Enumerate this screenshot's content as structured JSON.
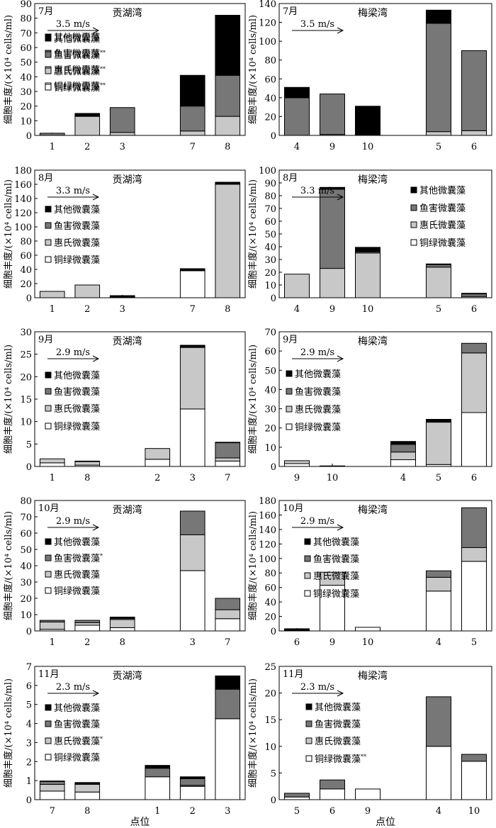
{
  "colors": {
    "其他微囊藻": "#000000",
    "鱼害微囊藻": "#777777",
    "惠氏微囊藻": "#c8c8c8",
    "铜绿微囊藻": "#ffffff"
  },
  "ylabel": "细胞丰度/(×10⁴ cells/ml)",
  "xlabel": "点位",
  "chart_data": [
    {
      "type": "bar",
      "stacked": true,
      "month": "7月",
      "lake": "贡湖湾",
      "wind": "3.5 m/s",
      "ylim": [
        0,
        90
      ],
      "yticks": [
        0,
        10,
        20,
        30,
        40,
        50,
        60,
        70,
        80,
        90
      ],
      "categories": [
        "1",
        "2",
        "3",
        "",
        "7",
        "8"
      ],
      "series": [
        {
          "name": "铜绿微囊藻",
          "values": [
            0,
            0,
            0,
            0,
            0,
            0
          ]
        },
        {
          "name": "惠氏微囊藻",
          "values": [
            0,
            13,
            2,
            0,
            3,
            13
          ]
        },
        {
          "name": "鱼害微囊藻",
          "values": [
            1.5,
            0,
            17,
            0,
            17,
            28
          ]
        },
        {
          "name": "其他微囊藻",
          "values": [
            0,
            2,
            0,
            0,
            21,
            41
          ]
        }
      ],
      "legend": [
        {
          "name": "其他微囊藻",
          "mark": ""
        },
        {
          "name": "鱼害微囊藻",
          "mark": ""
        },
        {
          "name": "惠氏微囊藻",
          "mark": ""
        },
        {
          "name": "铜绿微囊藻",
          "mark": ""
        }
      ]
    },
    {
      "type": "bar",
      "stacked": true,
      "month": "7月",
      "lake": "梅梁湾",
      "wind": "3.5 m/s",
      "ylim": [
        0,
        140
      ],
      "yticks": [
        0,
        20,
        40,
        60,
        80,
        100,
        120,
        140
      ],
      "categories": [
        "4",
        "9",
        "10",
        "",
        "5",
        "6"
      ],
      "series": [
        {
          "name": "铜绿微囊藻",
          "values": [
            0,
            0,
            0,
            0,
            0,
            0
          ]
        },
        {
          "name": "惠氏微囊藻",
          "values": [
            0,
            1,
            0,
            0,
            4,
            5
          ]
        },
        {
          "name": "鱼害微囊藻",
          "values": [
            40,
            43,
            0,
            0,
            115,
            85
          ]
        },
        {
          "name": "其他微囊藻",
          "values": [
            11,
            0,
            31,
            0,
            14,
            0
          ]
        }
      ],
      "legend": [
        {
          "name": "其他微囊藻",
          "mark": ""
        },
        {
          "name": "鱼害微囊藻",
          "mark": "**"
        },
        {
          "name": "惠氏微囊藻",
          "mark": "**"
        },
        {
          "name": "铜绿微囊藻",
          "mark": "**"
        }
      ]
    },
    {
      "type": "bar",
      "stacked": true,
      "month": "8月",
      "lake": "贡湖湾",
      "wind": "3.3 m/s",
      "ylim": [
        0,
        180
      ],
      "yticks": [
        0,
        20,
        40,
        60,
        80,
        100,
        120,
        140,
        160,
        180
      ],
      "categories": [
        "1",
        "2",
        "3",
        "",
        "7",
        "8"
      ],
      "series": [
        {
          "name": "铜绿微囊藻",
          "values": [
            0,
            0,
            0,
            0,
            38,
            0
          ]
        },
        {
          "name": "惠氏微囊藻",
          "values": [
            9,
            18,
            1,
            0,
            0,
            160
          ]
        },
        {
          "name": "鱼害微囊藻",
          "values": [
            0,
            0,
            0,
            0,
            0,
            0
          ]
        },
        {
          "name": "其他微囊藻",
          "values": [
            0,
            0,
            2,
            0,
            3,
            3
          ]
        }
      ],
      "legend": [
        {
          "name": "其他微囊藻",
          "mark": ""
        },
        {
          "name": "鱼害微囊藻",
          "mark": ""
        },
        {
          "name": "惠氏微囊藻",
          "mark": ""
        },
        {
          "name": "铜绿微囊藻",
          "mark": ""
        }
      ]
    },
    {
      "type": "bar",
      "stacked": true,
      "month": "8月",
      "lake": "梅梁湾",
      "wind": "3.3 m/s",
      "ylim": [
        0,
        100
      ],
      "yticks": [
        0,
        10,
        20,
        30,
        40,
        50,
        60,
        70,
        80,
        90,
        100
      ],
      "categories": [
        "4",
        "9",
        "10",
        "",
        "5",
        "6"
      ],
      "series": [
        {
          "name": "铜绿微囊藻",
          "values": [
            0,
            0,
            0,
            0,
            0,
            0
          ]
        },
        {
          "name": "惠氏微囊藻",
          "values": [
            18.5,
            23,
            35,
            0,
            24,
            1
          ]
        },
        {
          "name": "鱼害微囊藻",
          "values": [
            0,
            62,
            1,
            0,
            2,
            2
          ]
        },
        {
          "name": "其他微囊藻",
          "values": [
            0,
            1.5,
            3.5,
            0,
            0.5,
            0.5
          ]
        }
      ],
      "legend": [
        {
          "name": "其他微囊藻",
          "mark": ""
        },
        {
          "name": "鱼害微囊藻",
          "mark": ""
        },
        {
          "name": "惠氏微囊藻",
          "mark": ""
        },
        {
          "name": "铜绿微囊藻",
          "mark": ""
        }
      ]
    },
    {
      "type": "bar",
      "stacked": true,
      "month": "9月",
      "lake": "贡湖湾",
      "wind": "2.9 m/s",
      "ylim": [
        0,
        30
      ],
      "yticks": [
        0,
        5,
        10,
        15,
        20,
        25,
        30
      ],
      "categories": [
        "1",
        "8",
        "",
        "2",
        "3",
        "7"
      ],
      "series": [
        {
          "name": "铜绿微囊藻",
          "values": [
            0.8,
            0.3,
            0,
            1.6,
            12.8,
            1.2
          ]
        },
        {
          "name": "惠氏微囊藻",
          "values": [
            0.9,
            0.8,
            0,
            2.4,
            13.7,
            0.7
          ]
        },
        {
          "name": "鱼害微囊藻",
          "values": [
            0,
            0.1,
            0,
            0,
            0.2,
            3.4
          ]
        },
        {
          "name": "其他微囊藻",
          "values": [
            0,
            0,
            0,
            0,
            0.3,
            0.1
          ]
        }
      ],
      "legend": [
        {
          "name": "其他微囊藻",
          "mark": ""
        },
        {
          "name": "鱼害微囊藻",
          "mark": ""
        },
        {
          "name": "惠氏微囊藻",
          "mark": ""
        },
        {
          "name": "铜绿微囊藻",
          "mark": ""
        }
      ]
    },
    {
      "type": "bar",
      "stacked": true,
      "month": "9月",
      "lake": "梅梁湾",
      "wind": "2.9 m/s",
      "ylim": [
        0,
        70
      ],
      "yticks": [
        0,
        10,
        20,
        30,
        40,
        50,
        60,
        70
      ],
      "categories": [
        "9",
        "10",
        "",
        "4",
        "5",
        "6"
      ],
      "series": [
        {
          "name": "铜绿微囊藻",
          "values": [
            1.5,
            0.3,
            0,
            3.5,
            1,
            28
          ]
        },
        {
          "name": "惠氏微囊藻",
          "values": [
            1.5,
            0,
            0,
            4,
            22,
            31
          ]
        },
        {
          "name": "鱼害微囊藻",
          "values": [
            0,
            0,
            0,
            4,
            0,
            5
          ]
        },
        {
          "name": "其他微囊藻",
          "values": [
            0,
            0,
            0,
            1.5,
            1.5,
            0
          ]
        }
      ],
      "legend": [
        {
          "name": "其他微囊藻",
          "mark": ""
        },
        {
          "name": "鱼害微囊藻",
          "mark": ""
        },
        {
          "name": "惠氏微囊藻",
          "mark": ""
        },
        {
          "name": "铜绿微囊藻",
          "mark": ""
        }
      ]
    },
    {
      "type": "bar",
      "stacked": true,
      "month": "10月",
      "lake": "贡湖湾",
      "wind": "2.9 m/s",
      "ylim": [
        0,
        80
      ],
      "yticks": [
        0,
        10,
        20,
        30,
        40,
        50,
        60,
        70,
        80
      ],
      "categories": [
        "1",
        "2",
        "8",
        "",
        "3",
        "7"
      ],
      "series": [
        {
          "name": "铜绿微囊藻",
          "values": [
            1,
            3.5,
            2,
            0,
            37,
            7.5
          ]
        },
        {
          "name": "惠氏微囊藻",
          "values": [
            4.5,
            1.5,
            5,
            0,
            22,
            5.5
          ]
        },
        {
          "name": "鱼害微囊藻",
          "values": [
            1,
            1.5,
            0.7,
            0,
            14.5,
            7
          ]
        },
        {
          "name": "其他微囊藻",
          "values": [
            0,
            0,
            0.8,
            0,
            0,
            0
          ]
        }
      ],
      "legend": [
        {
          "name": "其他微囊藻",
          "mark": ""
        },
        {
          "name": "鱼害微囊藻",
          "mark": "*"
        },
        {
          "name": "惠氏微囊藻",
          "mark": ""
        },
        {
          "name": "铜绿微囊藻",
          "mark": ""
        }
      ]
    },
    {
      "type": "bar",
      "stacked": true,
      "month": "10月",
      "lake": "梅梁湾",
      "wind": "2.9 m/s",
      "ylim": [
        0,
        180
      ],
      "yticks": [
        0,
        20,
        40,
        60,
        80,
        100,
        120,
        140,
        160,
        180
      ],
      "categories": [
        "6",
        "9",
        "10",
        "",
        "4",
        "5"
      ],
      "series": [
        {
          "name": "铜绿微囊藻",
          "values": [
            0,
            63,
            5,
            0,
            55,
            96
          ]
        },
        {
          "name": "惠氏微囊藻",
          "values": [
            1,
            18,
            0,
            0,
            19,
            19
          ]
        },
        {
          "name": "鱼害微囊藻",
          "values": [
            1,
            0,
            0,
            0,
            9,
            55
          ]
        },
        {
          "name": "其他微囊藻",
          "values": [
            1,
            0,
            0,
            0,
            0,
            0
          ]
        }
      ],
      "legend": [
        {
          "name": "其他微囊藻",
          "mark": ""
        },
        {
          "name": "鱼害微囊藻",
          "mark": ""
        },
        {
          "name": "惠氏微囊藻",
          "mark": ""
        },
        {
          "name": "铜绿微囊藻",
          "mark": ""
        }
      ]
    },
    {
      "type": "bar",
      "stacked": true,
      "month": "11月",
      "lake": "贡湖湾",
      "wind": "2.3 m/s",
      "ylim": [
        0,
        7
      ],
      "yticks": [
        0,
        1,
        2,
        3,
        4,
        5,
        6,
        7
      ],
      "categories": [
        "7",
        "8",
        "",
        "1",
        "2",
        "3"
      ],
      "series": [
        {
          "name": "铜绿微囊藻",
          "values": [
            0.45,
            0.4,
            0,
            1.2,
            0.7,
            4.25
          ]
        },
        {
          "name": "惠氏微囊藻",
          "values": [
            0.35,
            0.4,
            0,
            0,
            0.05,
            0
          ]
        },
        {
          "name": "鱼害微囊藻",
          "values": [
            0.15,
            0.05,
            0,
            0.45,
            0.35,
            1.55
          ]
        },
        {
          "name": "其他微囊藻",
          "values": [
            0.03,
            0.05,
            0,
            0.15,
            0.1,
            0.7
          ]
        }
      ],
      "legend": [
        {
          "name": "其他微囊藻",
          "mark": ""
        },
        {
          "name": "鱼害微囊藻",
          "mark": ""
        },
        {
          "name": "惠氏微囊藻",
          "mark": "*"
        },
        {
          "name": "铜绿微囊藻",
          "mark": ""
        }
      ]
    },
    {
      "type": "bar",
      "stacked": true,
      "month": "11月",
      "lake": "梅梁湾",
      "wind": "2.3 m/s",
      "ylim": [
        0,
        25
      ],
      "yticks": [
        0,
        5,
        10,
        15,
        20,
        25
      ],
      "categories": [
        "5",
        "6",
        "9",
        "",
        "4",
        "10"
      ],
      "series": [
        {
          "name": "铜绿微囊藻",
          "values": [
            0.5,
            2,
            2,
            0,
            10,
            7.2
          ]
        },
        {
          "name": "惠氏微囊藻",
          "values": [
            0,
            0,
            0,
            0,
            0,
            0
          ]
        },
        {
          "name": "鱼害微囊藻",
          "values": [
            0.7,
            1.7,
            0,
            0,
            9.3,
            1.3
          ]
        },
        {
          "name": "其他微囊藻",
          "values": [
            0,
            0,
            0,
            0,
            0,
            0
          ]
        }
      ],
      "legend": [
        {
          "name": "其他微囊藻",
          "mark": ""
        },
        {
          "name": "鱼害微囊藻",
          "mark": ""
        },
        {
          "name": "惠氏微囊藻",
          "mark": ""
        },
        {
          "name": "铜绿微囊藻",
          "mark": "**"
        }
      ]
    }
  ]
}
